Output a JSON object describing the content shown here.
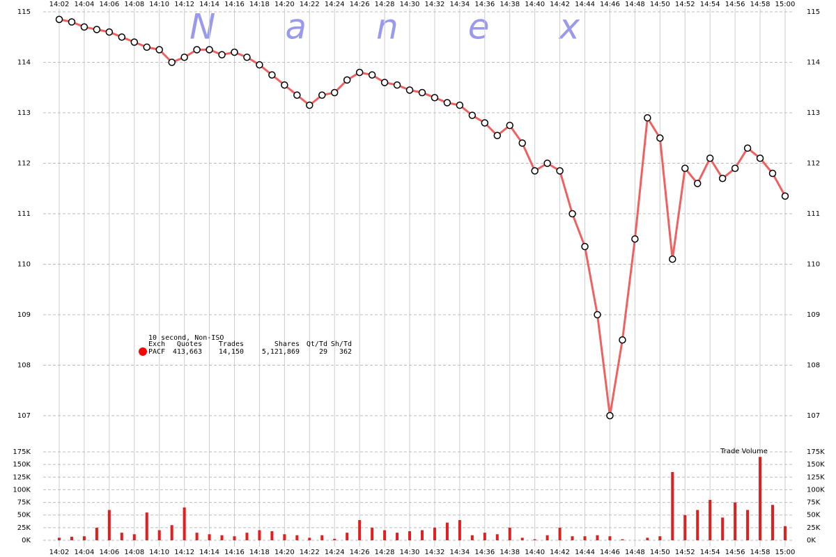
{
  "watermark": "Nanex",
  "legend": {
    "title": "10 second, Non-ISO",
    "marker_color": "#ff0000",
    "columns": [
      "Exch",
      "Quotes",
      "Trades",
      "Shares",
      "Qt/Td",
      "Sh/Td"
    ],
    "rows": [
      [
        "PACF",
        "413,663",
        "14,150",
        "5,121,869",
        "29",
        "362"
      ]
    ]
  },
  "chart_data": [
    {
      "type": "line",
      "categories": [
        "14:02",
        null,
        "14:04",
        null,
        "14:06",
        null,
        "14:08",
        null,
        "14:10",
        null,
        "14:12",
        null,
        "14:14",
        null,
        "14:16",
        null,
        "14:18",
        null,
        "14:20",
        null,
        "14:22",
        null,
        "14:24",
        null,
        "14:26",
        null,
        "14:28",
        null,
        "14:30",
        null,
        "14:32",
        null,
        "14:34",
        null,
        "14:36",
        null,
        "14:38",
        null,
        "14:40",
        null,
        "14:42",
        null,
        "14:44",
        null,
        "14:46",
        null,
        "14:48",
        null,
        "14:50",
        null,
        "14:52",
        null,
        "14:54",
        null,
        "14:56",
        null,
        "14:58",
        null,
        "15:00"
      ],
      "series": [
        {
          "color": "#f06060",
          "marker": "circle",
          "values": [
            114.85,
            114.8,
            114.7,
            114.65,
            114.6,
            114.5,
            114.4,
            114.3,
            114.25,
            114.0,
            114.1,
            114.25,
            114.25,
            114.15,
            114.2,
            114.1,
            113.95,
            113.75,
            113.55,
            113.35,
            113.15,
            113.35,
            113.4,
            113.65,
            113.8,
            113.75,
            113.6,
            113.55,
            113.45,
            113.4,
            113.3,
            113.2,
            113.15,
            112.95,
            112.8,
            112.55,
            112.75,
            112.4,
            111.85,
            112.0,
            111.85,
            111.0,
            110.35,
            109.0,
            107.0,
            108.5,
            110.5,
            112.9,
            112.5,
            110.1,
            111.9,
            111.6,
            112.1,
            111.7,
            111.9,
            112.3,
            112.1,
            111.8,
            111.35
          ]
        }
      ],
      "ylim": [
        106.4,
        115.2
      ],
      "yticks": [
        107,
        108,
        109,
        110,
        111,
        112,
        113,
        114,
        115
      ],
      "grid": true
    },
    {
      "type": "bar",
      "title": "Trade Volume",
      "color": "#e02020",
      "categories": [
        "14:02",
        null,
        "14:04",
        null,
        "14:06",
        null,
        "14:08",
        null,
        "14:10",
        null,
        "14:12",
        null,
        "14:14",
        null,
        "14:16",
        null,
        "14:18",
        null,
        "14:20",
        null,
        "14:22",
        null,
        "14:24",
        null,
        "14:26",
        null,
        "14:28",
        null,
        "14:30",
        null,
        "14:32",
        null,
        "14:34",
        null,
        "14:36",
        null,
        "14:38",
        null,
        "14:40",
        null,
        "14:42",
        null,
        "14:44",
        null,
        "14:46",
        null,
        "14:48",
        null,
        "14:50",
        null,
        "14:52",
        null,
        "14:54",
        null,
        "14:56",
        null,
        "14:58",
        null,
        "15:00"
      ],
      "values": [
        5,
        7,
        8,
        25,
        60,
        15,
        12,
        55,
        20,
        30,
        65,
        15,
        12,
        10,
        8,
        15,
        20,
        18,
        12,
        10,
        5,
        10,
        3,
        15,
        40,
        25,
        20,
        15,
        18,
        20,
        25,
        35,
        40,
        10,
        15,
        12,
        25,
        5,
        2,
        10,
        25,
        8,
        8,
        10,
        8,
        2,
        0,
        5,
        8,
        135,
        50,
        60,
        80,
        45,
        75,
        60,
        165,
        70,
        28
      ],
      "ylim": [
        0,
        175
      ],
      "yticks": [
        {
          "value": 0,
          "label": "0K"
        },
        {
          "value": 25,
          "label": "25K"
        },
        {
          "value": 50,
          "label": "50K"
        },
        {
          "value": 75,
          "label": "75K"
        },
        {
          "value": 100,
          "label": "100K"
        },
        {
          "value": 125,
          "label": "125K"
        },
        {
          "value": 150,
          "label": "150K"
        },
        {
          "value": 175,
          "label": "175K"
        }
      ],
      "grid": true
    }
  ]
}
